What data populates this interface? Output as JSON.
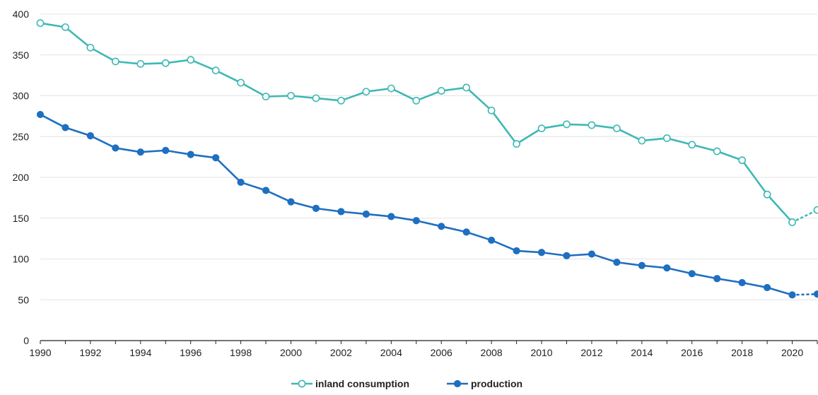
{
  "chart_data": {
    "type": "line",
    "title": "",
    "xlabel": "",
    "ylabel": "",
    "xlim": [
      1990,
      2021
    ],
    "ylim": [
      0,
      400
    ],
    "x_ticks": [
      1990,
      1992,
      1994,
      1996,
      1998,
      2000,
      2002,
      2004,
      2006,
      2008,
      2010,
      2012,
      2014,
      2016,
      2018,
      2020
    ],
    "y_ticks": [
      0,
      50,
      100,
      150,
      200,
      250,
      300,
      350,
      400
    ],
    "grid": "horizontal",
    "legend_position": "bottom-center",
    "x": [
      1990,
      1991,
      1992,
      1993,
      1994,
      1995,
      1996,
      1997,
      1998,
      1999,
      2000,
      2001,
      2002,
      2003,
      2004,
      2005,
      2006,
      2007,
      2008,
      2009,
      2010,
      2011,
      2012,
      2013,
      2014,
      2015,
      2016,
      2017,
      2018,
      2019,
      2020,
      2021
    ],
    "series": [
      {
        "name": "inland consumption",
        "color": "#3fb8b4",
        "marker": "open-circle",
        "values": [
          389,
          384,
          359,
          342,
          339,
          340,
          344,
          331,
          316,
          299,
          300,
          297,
          294,
          305,
          309,
          294,
          306,
          310,
          282,
          241,
          260,
          265,
          264,
          260,
          245,
          248,
          240,
          232,
          221,
          179,
          145,
          160
        ],
        "estimated_from": 2020
      },
      {
        "name": "production",
        "color": "#1f6fc0",
        "marker": "filled-circle",
        "values": [
          277,
          261,
          251,
          236,
          231,
          233,
          228,
          224,
          194,
          184,
          170,
          162,
          158,
          155,
          152,
          147,
          140,
          133,
          123,
          110,
          108,
          104,
          106,
          96,
          92,
          89,
          82,
          76,
          71,
          65,
          56,
          57
        ],
        "estimated_from": 2020
      }
    ]
  }
}
